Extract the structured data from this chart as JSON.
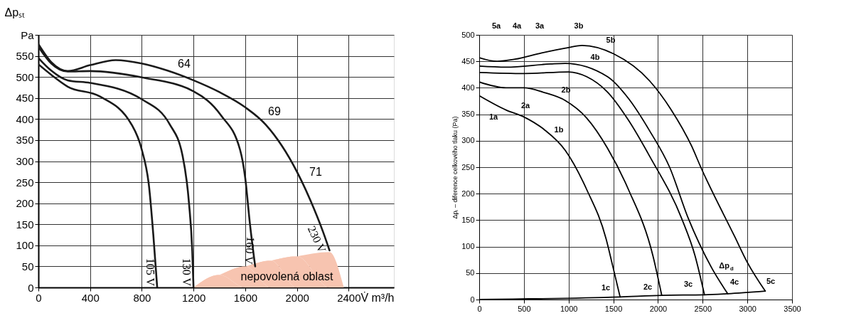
{
  "chart_data": [
    {
      "type": "line",
      "xlabel": "V̇ m³/h",
      "ylabel": "Δpₛₜ",
      "xlim": [
        0,
        2750
      ],
      "ylim": [
        0,
        600
      ],
      "xticks": [
        0,
        400,
        800,
        1200,
        1600,
        2000,
        2400
      ],
      "yticks": [
        0,
        50,
        100,
        150,
        200,
        250,
        300,
        350,
        400,
        450,
        500,
        550,
        {
          "value": 600,
          "label": "Pa"
        }
      ],
      "grid": true,
      "series": [
        {
          "type": "area",
          "color": "#f7c4b0",
          "x": [
            1200,
            1400,
            1600,
            1800,
            2000,
            2252,
            2363
          ],
          "values": [
            0,
            30,
            50,
            64,
            74,
            84,
            0
          ]
        },
        {
          "name": "230 V",
          "color": "#1a1a1a",
          "x": [
            0,
            100,
            227,
            400,
            598,
            800,
            1000,
            1200,
            1400,
            1600,
            1758,
            2000,
            2104,
            2202,
            2252
          ],
          "values": [
            578,
            535,
            514,
            528,
            540,
            532,
            515,
            492,
            464,
            428,
            387,
            275,
            207,
            132,
            88
          ]
        },
        {
          "name": "160 V",
          "color": "#1a1a1a",
          "x": [
            0,
            100,
            227,
            400,
            800,
            1200,
            1412,
            1560,
            1600,
            1635,
            1677
          ],
          "values": [
            572,
            532,
            513,
            514,
            499,
            466,
            409,
            327,
            260,
            155,
            50
          ]
        },
        {
          "name": "130 V",
          "color": "#1a1a1a",
          "x": [
            0,
            100,
            227,
            400,
            800,
            1017,
            1116,
            1165,
            1190,
            1200
          ],
          "values": [
            545,
            515,
            492,
            486,
            447,
            387,
            312,
            200,
            88,
            0
          ]
        },
        {
          "name": "105 V",
          "color": "#1a1a1a",
          "x": [
            0,
            100,
            227,
            474,
            721,
            800,
            857,
            889,
            919
          ],
          "values": [
            530,
            505,
            477,
            454,
            387,
            327,
            237,
            125,
            0
          ]
        }
      ],
      "annotations": [
        "64",
        "69",
        "71",
        {
          "text": "nepovolená oblast",
          "x": 1922,
          "y": 26
        }
      ]
    },
    {
      "type": "line",
      "ylabel": "Δpₜ – diference celkového tlaku (Pa)",
      "xlim": [
        0,
        3500
      ],
      "ylim": [
        0,
        500
      ],
      "xticks": [
        0,
        500,
        1000,
        1500,
        2000,
        2500,
        3000,
        3500
      ],
      "yticks": [
        0,
        50,
        100,
        150,
        200,
        250,
        300,
        350,
        400,
        450,
        500
      ],
      "grid": true,
      "series": [
        {
          "color": "#000000",
          "x": [
            0,
            200,
            400,
            700,
            1000,
            1150,
            1506,
            1907,
            2142,
            2376,
            2479,
            2858,
            3000,
            3200
          ],
          "values": [
            457,
            450,
            454,
            466,
            476,
            480,
            464,
            413,
            360,
            290,
            250,
            119,
            70,
            16
          ]
        },
        {
          "color": "#000000",
          "x": [
            0,
            300,
            800,
            962,
            1435,
            1669,
            1909,
            2130,
            2335,
            2597,
            2780
          ],
          "values": [
            441,
            439,
            445,
            446,
            421,
            380,
            318,
            250,
            155,
            61,
            11
          ]
        },
        {
          "color": "#000000",
          "x": [
            0,
            500,
            1000,
            1202,
            1435,
            1669,
            1909,
            2270,
            2414,
            2520
          ],
          "values": [
            429,
            427,
            430,
            421,
            392,
            339,
            270,
            151,
            83,
            9
          ]
        },
        {
          "color": "#000000",
          "x": [
            0,
            300,
            500,
            728,
            962,
            1202,
            1435,
            1669,
            1943,
            2042
          ],
          "values": [
            411,
            400,
            400,
            391,
            376,
            343,
            286,
            208,
            83,
            8
          ]
        },
        {
          "color": "#000000",
          "x": [
            0,
            300,
            500,
            728,
            962,
            1202,
            1419,
            1497,
            1576
          ],
          "values": [
            385,
            358,
            345,
            321,
            282,
            208,
            115,
            61,
            5
          ]
        },
        {
          "color": "#000000",
          "x": [
            0,
            1576,
            2042,
            2520,
            2780,
            3200
          ],
          "values": [
            0,
            5,
            8,
            9,
            11,
            16
          ]
        }
      ],
      "annotations": [
        "5a",
        "4a",
        "3a",
        "3b",
        "5b",
        "4b",
        "2b",
        "2a",
        "1a",
        "1b",
        "1c",
        "2c",
        "3c",
        "4c",
        "5c",
        "Δp$_{d}$"
      ]
    }
  ]
}
